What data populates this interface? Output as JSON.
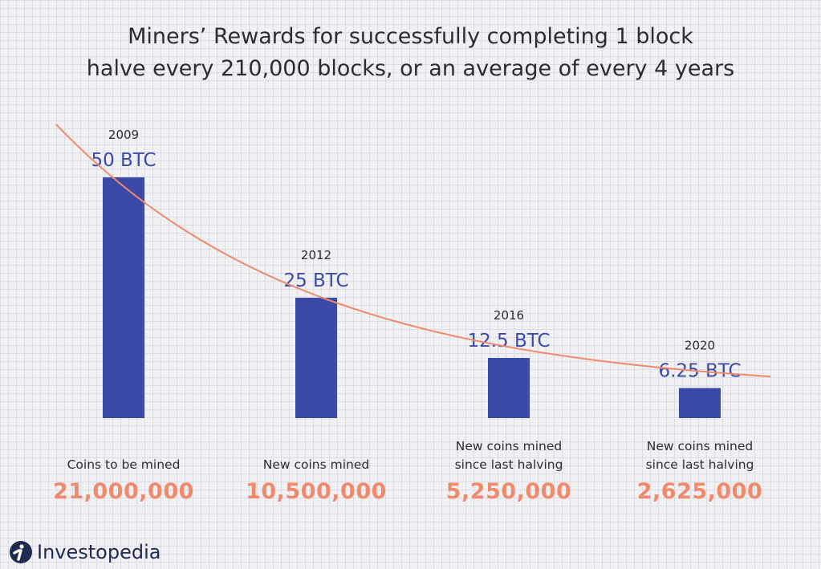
{
  "title_line1": "Miners’ Rewards for successfully completing 1 block",
  "title_line2": "halve every 210,000 blocks, or an average of every 4 years",
  "chart_data": {
    "type": "bar",
    "categories": [
      "2009",
      "2012",
      "2016",
      "2020"
    ],
    "values": [
      50,
      25,
      12.5,
      6.25
    ],
    "value_labels": [
      "50 BTC",
      "25 BTC",
      "12.5 BTC",
      "6.25 BTC"
    ],
    "units": "BTC",
    "trend_line": "decay curve",
    "captions": [
      [
        "Coins to be mined"
      ],
      [
        "New coins mined"
      ],
      [
        "New coins mined",
        "since last halving"
      ],
      [
        "New coins mined",
        "since last halving"
      ]
    ],
    "counts": [
      "21,000,000",
      "10,500,000",
      "5,250,000",
      "2,625,000"
    ],
    "grid": true,
    "colors": {
      "bar": "#3b4aa6",
      "curve": "#ef8a6c",
      "count": "#ef8a6c"
    }
  },
  "brand": {
    "name": "Investopedia"
  }
}
